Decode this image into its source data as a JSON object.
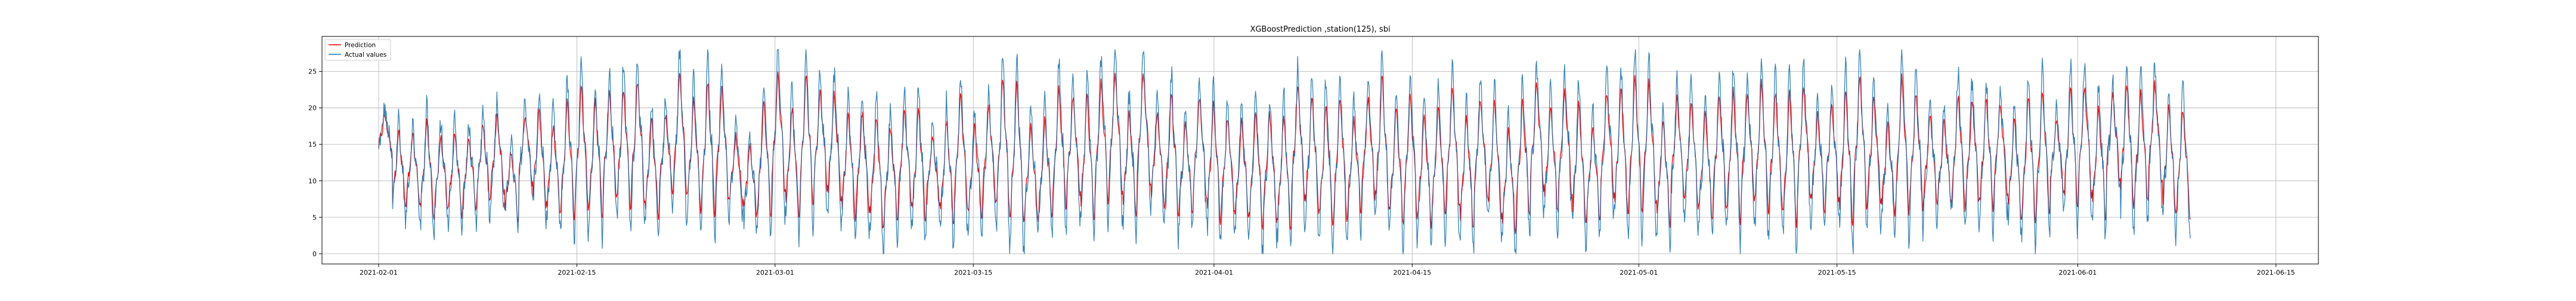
{
  "chart_data": {
    "type": "line",
    "title": "XGBoostPrediction ,station(125), sbi",
    "xlabel": "",
    "ylabel": "",
    "x_range": [
      "2021-01-28",
      "2021-06-18"
    ],
    "ylim": [
      -1.4,
      29.8
    ],
    "grid": true,
    "legend_placement": "top-left",
    "x_ticks": [
      "2021-02-01",
      "2021-02-15",
      "2021-03-01",
      "2021-03-15",
      "2021-04-01",
      "2021-04-15",
      "2021-05-01",
      "2021-05-15",
      "2021-06-01",
      "2021-06-15"
    ],
    "y_ticks": [
      0,
      5,
      10,
      15,
      20,
      25
    ],
    "x_start": "2021-02-01",
    "x_end": "2021-06-09",
    "sample_interval": "1H",
    "actual_daily_max": [
      20,
      19,
      18,
      21,
      18,
      19,
      18,
      20,
      21,
      16,
      21,
      22,
      20,
      24,
      26,
      24,
      25,
      26,
      27,
      21,
      21,
      28,
      24,
      27,
      26,
      18,
      17,
      24,
      28,
      23,
      28,
      25,
      25,
      22,
      22,
      22,
      20,
      22,
      23,
      18,
      21,
      25,
      20,
      23,
      28,
      27,
      20,
      21,
      26,
      24,
      25,
      27,
      28,
      22,
      28,
      22,
      25,
      20,
      24,
      24,
      21,
      21,
      23,
      22,
      22,
      26,
      25,
      24,
      25,
      21,
      24,
      28,
      23,
      25,
      22,
      23,
      26,
      22,
      24,
      24,
      20,
      24,
      26,
      23,
      25,
      24,
      20,
      25,
      26,
      28,
      27,
      21,
      24,
      24,
      22,
      25,
      26,
      25,
      27,
      25,
      26,
      26,
      22,
      23,
      26,
      28,
      24,
      20,
      28,
      25,
      22,
      20,
      25,
      24,
      24,
      23,
      21,
      25,
      26,
      20,
      26,
      26,
      23,
      24,
      27,
      25,
      26,
      23,
      23
    ],
    "actual_daily_min": [
      13,
      4,
      5,
      2,
      4,
      3,
      4,
      5,
      6,
      3,
      8,
      4,
      3,
      2,
      3,
      2,
      5,
      3,
      4,
      2,
      6,
      5,
      3,
      2,
      4,
      5,
      3,
      2,
      5,
      2,
      3,
      6,
      4,
      2,
      3,
      0,
      2,
      4,
      1,
      5,
      1,
      3,
      2,
      4,
      1,
      0,
      2,
      2,
      3,
      5,
      1,
      4,
      5,
      2,
      6,
      4,
      2,
      3,
      5,
      1,
      3,
      2,
      0,
      2,
      0,
      4,
      2,
      0,
      1,
      3,
      5,
      2,
      1,
      2,
      1,
      2,
      3,
      0,
      5,
      2,
      0,
      2,
      6,
      3,
      5,
      1,
      2,
      5,
      2,
      2,
      3,
      1,
      5,
      3,
      2,
      3,
      1,
      4,
      2,
      3,
      0,
      4,
      3,
      5,
      0,
      3,
      4,
      3,
      2,
      3,
      4,
      5,
      3,
      4,
      3,
      6,
      2,
      1,
      2,
      7,
      3,
      5,
      2,
      8,
      3,
      4,
      7,
      2,
      2
    ],
    "series": [
      {
        "name": "Prediction",
        "color": "#ff0000"
      },
      {
        "name": "Actual values",
        "color": "#1f77b4"
      }
    ]
  }
}
